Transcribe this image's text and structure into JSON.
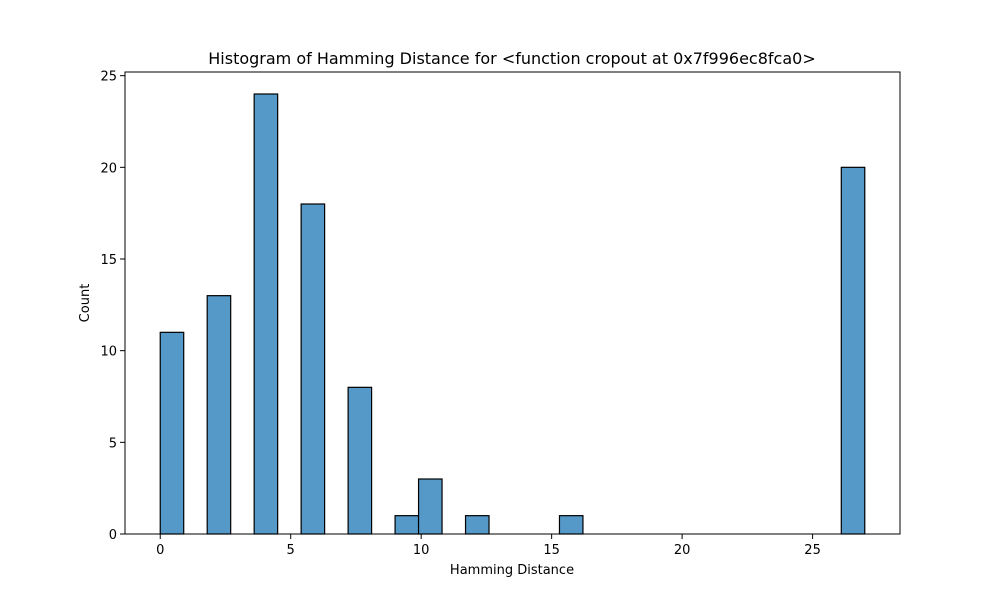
{
  "chart_data": {
    "type": "bar",
    "title": "Histogram of Hamming Distance for <function cropout at 0x7f996ec8fca0>",
    "xlabel": "Hamming Distance",
    "ylabel": "Count",
    "xlim": [
      -1.35,
      28.35
    ],
    "ylim": [
      0,
      25.2
    ],
    "grid": false,
    "bar_color": "#5599c8",
    "edge_color": "#000000",
    "bin_width": 0.9,
    "bins": [
      {
        "x0": 0.0,
        "x1": 0.9,
        "count": 11
      },
      {
        "x0": 1.8,
        "x1": 2.7,
        "count": 13
      },
      {
        "x0": 3.6,
        "x1": 4.5,
        "count": 24
      },
      {
        "x0": 5.4,
        "x1": 6.3,
        "count": 18
      },
      {
        "x0": 7.2,
        "x1": 8.1,
        "count": 8
      },
      {
        "x0": 9.0,
        "x1": 9.9,
        "count": 1
      },
      {
        "x0": 9.9,
        "x1": 10.8,
        "count": 3
      },
      {
        "x0": 11.7,
        "x1": 12.6,
        "count": 1
      },
      {
        "x0": 15.3,
        "x1": 16.2,
        "count": 1
      },
      {
        "x0": 26.1,
        "x1": 27.0,
        "count": 20
      }
    ],
    "xticks": [
      0,
      5,
      10,
      15,
      20,
      25
    ],
    "yticks": [
      0,
      5,
      10,
      15,
      20,
      25
    ]
  }
}
